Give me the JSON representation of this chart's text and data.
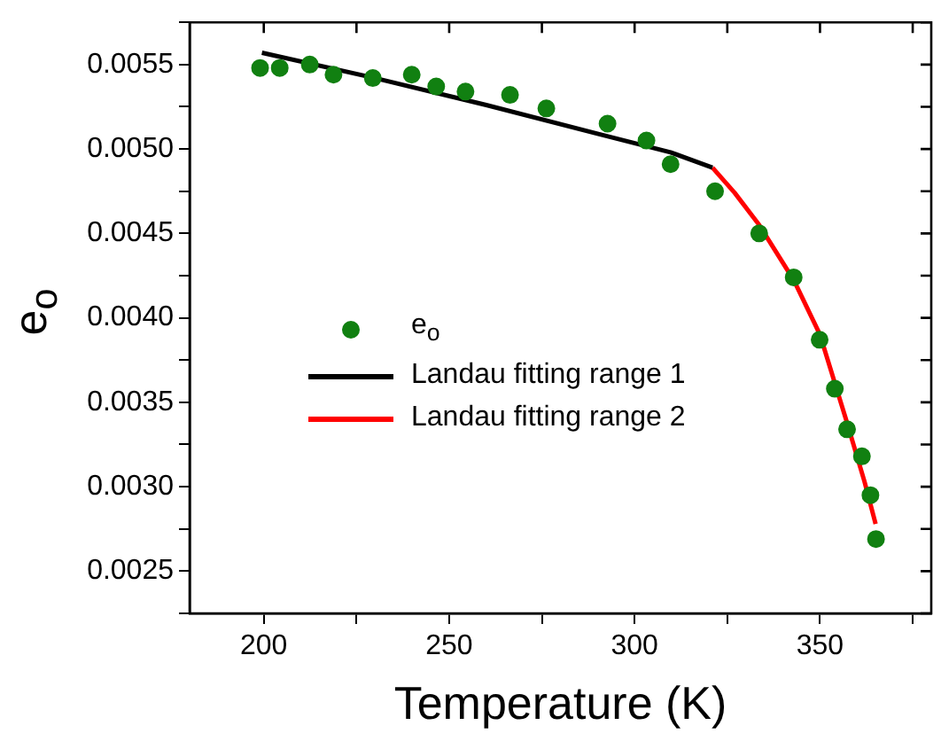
{
  "chart_data": {
    "type": "scatter",
    "xlabel": "Temperature (K)",
    "ylabel": "e$_{o}$",
    "xlim": [
      180,
      380
    ],
    "xticks": [
      200,
      {
        "value": 225,
        "label": null
      },
      250,
      {
        "value": 275,
        "label": null
      },
      300,
      {
        "value": 325,
        "label": null
      },
      350,
      {
        "value": 375,
        "label": null
      }
    ],
    "ylim": [
      0.00225,
      0.00575
    ],
    "yticks": [
      {
        "value": 0.00225,
        "label": null
      },
      0.0025,
      {
        "value": 0.00275,
        "label": null
      },
      {
        "value": 0.003,
        "label": "0.0030"
      },
      {
        "value": 0.00325,
        "label": null
      },
      0.0035,
      {
        "value": 0.00375,
        "label": null
      },
      {
        "value": 0.004,
        "label": "0.0040"
      },
      {
        "value": 0.00425,
        "label": null
      },
      0.0045,
      {
        "value": 0.00475,
        "label": null
      },
      {
        "value": 0.005,
        "label": "0.0050"
      },
      {
        "value": 0.00525,
        "label": null
      },
      0.0055,
      {
        "value": 0.00575,
        "label": null
      }
    ],
    "grid": false,
    "legend": "left",
    "marker": "circle",
    "series": [
      {
        "name": "e$_{o}$",
        "color": "#118011",
        "x": [
          199.0,
          204.3,
          212.4,
          218.8,
          229.4,
          239.9,
          246.5,
          254.4,
          266.4,
          276.2,
          292.7,
          303.2,
          309.7,
          321.7,
          333.6,
          342.9,
          349.9,
          354.0,
          357.3,
          361.3,
          363.6,
          365.1
        ],
        "values": [
          0.00548,
          0.00548,
          0.0055,
          0.00544,
          0.00542,
          0.00544,
          0.00537,
          0.00534,
          0.00532,
          0.00524,
          0.00515,
          0.00505,
          0.00491,
          0.00475,
          0.0045,
          0.00424,
          0.00387,
          0.00358,
          0.00334,
          0.00318,
          0.00295,
          0.00269
        ]
      },
      {
        "name": "Landau fitting range 1",
        "type": "line",
        "color": "#000000",
        "marker": "none",
        "x": [
          199.5,
          230,
          260,
          290,
          309.7,
          321
        ],
        "values": [
          0.00557,
          0.00542,
          0.00526,
          0.00509,
          0.00498,
          0.00489
        ]
      },
      {
        "name": "Landau fitting range 2",
        "type": "line",
        "color": "#ff0000",
        "marker": "none",
        "x": [
          321,
          327,
          333.6,
          343,
          350,
          357,
          362,
          365
        ],
        "values": [
          0.00489,
          0.00474,
          0.00455,
          0.00422,
          0.0039,
          0.0034,
          0.00303,
          0.00278
        ]
      }
    ]
  }
}
